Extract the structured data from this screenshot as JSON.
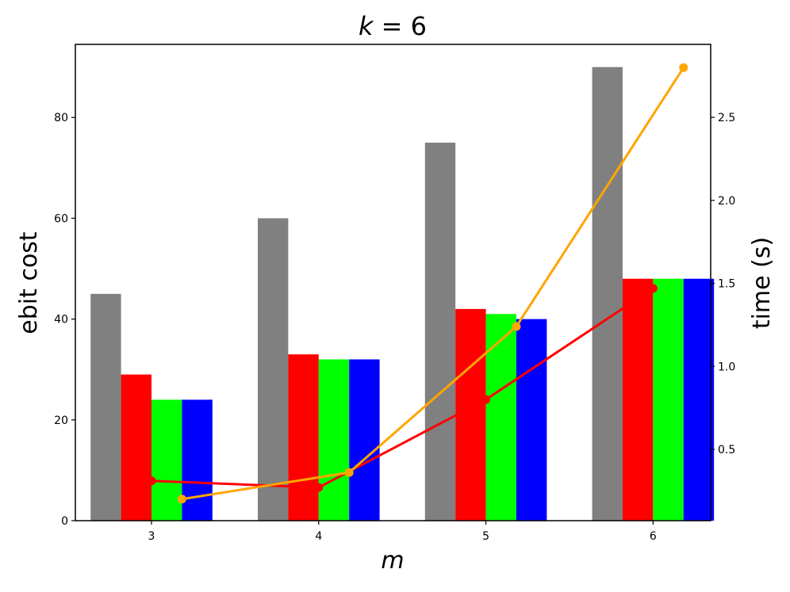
{
  "chart_data": {
    "type": "bar",
    "title_var": "k",
    "title_eq": " = 6",
    "xlabel": "m",
    "ylabel": "ebit cost",
    "y2label": "time (s)",
    "categories": [
      "3",
      "4",
      "5",
      "6"
    ],
    "ylim": [
      0,
      94.5
    ],
    "yticks": [
      "0",
      "20",
      "40",
      "60",
      "80"
    ],
    "y2lim": [
      0.07,
      2.94
    ],
    "y2ticks": [
      "0.5",
      "1.0",
      "1.5",
      "2.0",
      "2.5"
    ],
    "bar_series": [
      {
        "color": "#808080",
        "values": [
          45,
          60,
          75,
          90
        ]
      },
      {
        "color": "#ff0000",
        "values": [
          29,
          33,
          42,
          48
        ]
      },
      {
        "color": "#00ff00",
        "values": [
          24,
          32,
          41,
          48
        ]
      },
      {
        "color": "#0000ff",
        "values": [
          24,
          32,
          40,
          48
        ]
      }
    ],
    "line_series": [
      {
        "color": "#ff0000",
        "values": [
          0.31,
          0.27,
          0.8,
          1.47
        ],
        "bar_index": 1.5
      },
      {
        "color": "#ffa500",
        "values": [
          0.2,
          0.36,
          1.24,
          2.8
        ],
        "bar_index": 2.5
      }
    ]
  }
}
